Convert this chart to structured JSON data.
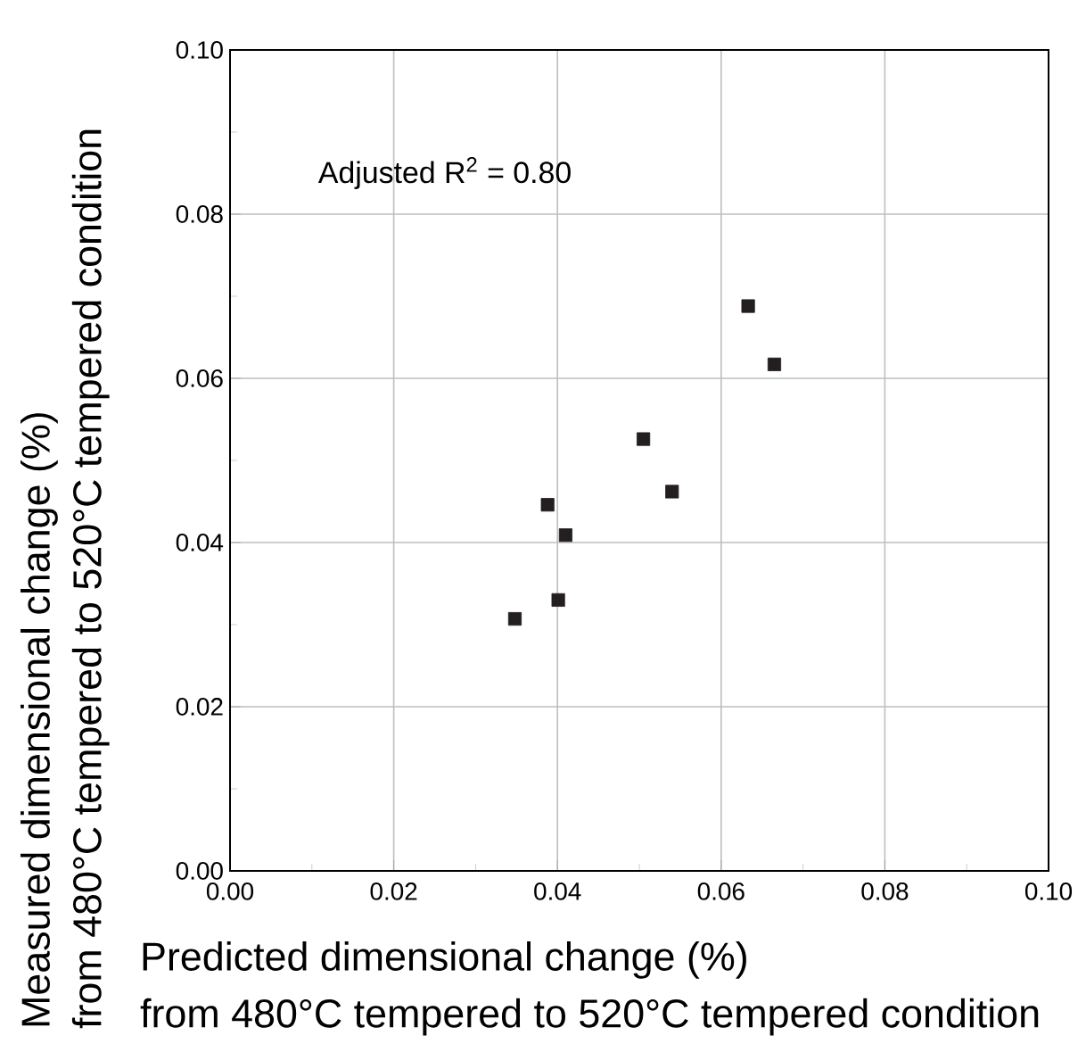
{
  "chart_data": {
    "type": "scatter",
    "xlabel": "Predicted dimensional change (%)\nfrom 480°C tempered to 520°C tempered condition",
    "ylabel": "Measured dimensional change (%)\nfrom 480°C tempered to 520°C tempered condition",
    "annotations": [
      "Adjusted R$^{2}$ = 0.80"
    ],
    "series": [
      {
        "color": "#231f20",
        "x": [
          0.0633,
          0.0665,
          0.0505,
          0.054,
          0.0388,
          0.041,
          0.0401,
          0.0348
        ],
        "values": [
          0.0688,
          0.0617,
          0.0526,
          0.0462,
          0.0446,
          0.0409,
          0.033,
          0.0307
        ]
      }
    ],
    "xlim": [
      0,
      0.1
    ],
    "ylim": [
      0,
      0.1
    ],
    "xticks": [
      {
        "value": 0,
        "label": "0.00"
      },
      0.02,
      0.04,
      0.06,
      0.08,
      {
        "value": 0.1,
        "label": "0.10"
      }
    ],
    "yticks": [
      {
        "value": 0,
        "label": "0.00"
      },
      0.02,
      0.04,
      0.06,
      0.08,
      {
        "value": 0.1,
        "label": "0.10"
      }
    ],
    "grid": true,
    "marker": "square"
  }
}
